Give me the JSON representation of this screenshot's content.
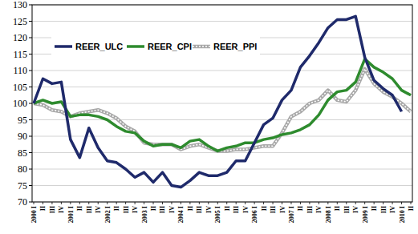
{
  "chart_data": {
    "type": "line",
    "categories": [
      "2000 I",
      "II",
      "III",
      "IV",
      "2001 I",
      "II",
      "III",
      "IV",
      "2002 I",
      "II",
      "III",
      "IV",
      "2003 I",
      "II",
      "III",
      "IV",
      "2004 I",
      "II",
      "III",
      "IV",
      "2005 I",
      "II",
      "III",
      "IV",
      "2006 I",
      "II",
      "III",
      "IV",
      "2007 I",
      "II",
      "III",
      "IV",
      "2008 I",
      "II",
      "III",
      "IV",
      "2009 I",
      "II",
      "III",
      "IV",
      "2010 I",
      "II"
    ],
    "series": [
      {
        "name": "REER_ULC",
        "color": "#1f2a6b",
        "line_style": "solid",
        "values": [
          100,
          107.5,
          106,
          106.5,
          89,
          83.5,
          92.5,
          86.5,
          82.5,
          82,
          80,
          77.5,
          79,
          76,
          79,
          75,
          74.5,
          76.5,
          79,
          78,
          78,
          79,
          82.5,
          82.5,
          88,
          93.5,
          95.5,
          101,
          104,
          111,
          114.5,
          118.5,
          123,
          125.5,
          125.5,
          126.5,
          114,
          107,
          104.5,
          102.5,
          97.5,
          null
        ]
      },
      {
        "name": "REER_CPI",
        "color": "#2e8b2e",
        "line_style": "solid",
        "values": [
          100,
          101,
          100,
          100.5,
          96,
          96.5,
          96.5,
          96,
          95,
          93,
          91.5,
          91,
          88.5,
          87,
          87.5,
          87.5,
          86.5,
          88.5,
          89,
          87,
          85.5,
          86.5,
          87,
          88,
          88,
          89,
          89.5,
          90.5,
          91,
          92,
          93.5,
          96.5,
          101,
          103.5,
          104,
          106.5,
          113.5,
          111,
          109.5,
          107.5,
          104,
          102.5
        ]
      },
      {
        "name": "REER_PPI",
        "color": "#a8a8a8",
        "line_style": "striped",
        "values": [
          100,
          99.5,
          98,
          97.5,
          96,
          97,
          97.5,
          98,
          97,
          95.5,
          93,
          91.5,
          88,
          87.5,
          87.5,
          87.5,
          86,
          87,
          87.5,
          86.5,
          85.5,
          85.5,
          86,
          86,
          86.5,
          87,
          87,
          91,
          96,
          97.5,
          100,
          101,
          104,
          101,
          100.5,
          104,
          110.5,
          106,
          103.5,
          102,
          100,
          97.5
        ]
      }
    ],
    "ylim": [
      70,
      130
    ],
    "yticks": [
      70,
      75,
      80,
      85,
      90,
      95,
      100,
      105,
      110,
      115,
      120,
      125,
      130
    ],
    "grid": true,
    "legend": "top-left"
  }
}
